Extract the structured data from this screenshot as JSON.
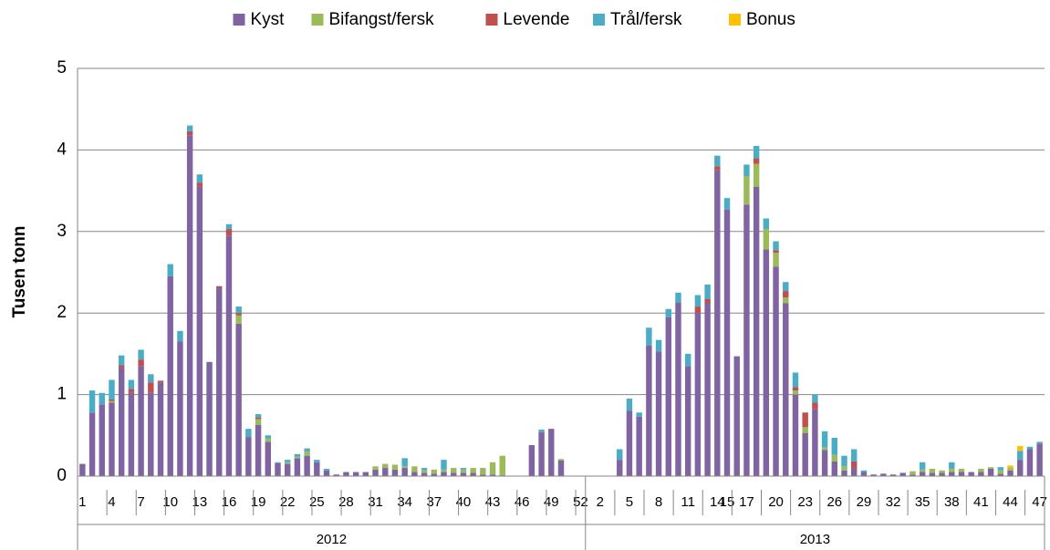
{
  "chart_data": {
    "type": "stacked_bar",
    "ylabel": "Tusen tonn",
    "ylim": [
      0,
      5
    ],
    "yticks": [
      0,
      1,
      2,
      3,
      4,
      5
    ],
    "grid": true,
    "legend": "top",
    "category_groups": [
      {
        "name": "2012",
        "categories": [
          "1",
          null,
          null,
          "4",
          null,
          null,
          "7",
          null,
          null,
          "10",
          null,
          null,
          "13",
          null,
          null,
          "16",
          null,
          null,
          "19",
          null,
          null,
          "22",
          null,
          null,
          "25",
          null,
          null,
          "28",
          null,
          null,
          "31",
          null,
          null,
          "34",
          null,
          null,
          "37",
          null,
          null,
          "40",
          null,
          null,
          "43",
          null,
          null,
          "46",
          null,
          null,
          "49",
          null,
          null,
          "52"
        ]
      },
      {
        "name": "2013",
        "categories": [
          null,
          "2",
          null,
          null,
          "5",
          null,
          null,
          "8",
          null,
          null,
          "11",
          null,
          null,
          "14",
          "15",
          null,
          "17",
          null,
          null,
          "20",
          null,
          null,
          "23",
          null,
          null,
          "26",
          null,
          null,
          "29",
          null,
          null,
          "32",
          null,
          null,
          "35",
          null,
          null,
          "38",
          null,
          null,
          "41",
          null,
          null,
          "44",
          null,
          null,
          "47"
        ]
      }
    ],
    "series": [
      {
        "name": "Kyst",
        "color": "#8064a2",
        "values": [
          0.15,
          0.78,
          0.88,
          0.9,
          1.33,
          1.02,
          1.35,
          1.02,
          1.15,
          2.45,
          1.65,
          4.18,
          3.55,
          1.4,
          2.31,
          2.95,
          1.87,
          0.48,
          0.63,
          0.42,
          0.16,
          0.15,
          0.22,
          0.25,
          0.17,
          0.07,
          0.02,
          0.05,
          0.05,
          0.05,
          0.08,
          0.1,
          0.08,
          0.1,
          0.05,
          0.04,
          0.03,
          0.05,
          0.04,
          0.04,
          0.04,
          0.02,
          0.02,
          0.01,
          0,
          0,
          0.38,
          0.54,
          0.58,
          0.19,
          0,
          0,
          0,
          0,
          0,
          0.2,
          0.8,
          0.73,
          1.6,
          1.53,
          1.95,
          2.13,
          1.35,
          2.0,
          2.12,
          3.75,
          3.27,
          1.47,
          3.33,
          3.55,
          2.78,
          2.57,
          2.12,
          1.0,
          0.53,
          0.82,
          0.32,
          0.18,
          0.07,
          0.1,
          0.05,
          0.02,
          0.03,
          0.02,
          0.04,
          0.02,
          0.05,
          0.04,
          0.04,
          0.05,
          0.05,
          0.05,
          0.05,
          0.09,
          0.03,
          0.07,
          0.2,
          0.33,
          0.4
        ]
      },
      {
        "name": "Bifangst/fersk",
        "color": "#9bbb59",
        "values": [
          0,
          0,
          0,
          0.02,
          0,
          0,
          0,
          0,
          0,
          0,
          0,
          0,
          0,
          0,
          0,
          0,
          0.1,
          0,
          0.07,
          0.04,
          0,
          0.02,
          0.02,
          0.05,
          0,
          0,
          0,
          0,
          0,
          0,
          0.04,
          0.05,
          0.06,
          0.02,
          0.07,
          0.03,
          0.05,
          0.03,
          0.06,
          0.04,
          0.06,
          0.08,
          0.15,
          0.24,
          0,
          0,
          0,
          0,
          0,
          0.02,
          0,
          0,
          0,
          0,
          0,
          0,
          0,
          0,
          0,
          0,
          0,
          0,
          0,
          0,
          0,
          0,
          0,
          0,
          0.35,
          0.28,
          0.25,
          0.17,
          0.07,
          0.05,
          0.07,
          0,
          0.03,
          0.08,
          0.05,
          0,
          0,
          0,
          0,
          0,
          0,
          0.04,
          0.03,
          0.05,
          0.03,
          0.04,
          0.04,
          0,
          0.04,
          0.02,
          0.04,
          0.03,
          0,
          0,
          0
        ]
      },
      {
        "name": "Levende",
        "color": "#c0504d",
        "values": [
          0,
          0,
          0,
          0.02,
          0.03,
          0.05,
          0.08,
          0.13,
          0.02,
          0,
          0,
          0.05,
          0.05,
          0,
          0.02,
          0.08,
          0.03,
          0,
          0.02,
          0,
          0,
          0,
          0,
          0,
          0,
          0,
          0,
          0,
          0,
          0,
          0,
          0,
          0,
          0,
          0,
          0,
          0,
          0,
          0,
          0,
          0,
          0,
          0,
          0,
          0,
          0,
          0,
          0,
          0,
          0,
          0,
          0,
          0,
          0,
          0,
          0,
          0,
          0,
          0,
          0,
          0,
          0,
          0,
          0.08,
          0.05,
          0.05,
          0,
          0,
          0,
          0.07,
          0,
          0.03,
          0.08,
          0.04,
          0.18,
          0.08,
          0,
          0,
          0,
          0.08,
          0,
          0,
          0,
          0,
          0,
          0,
          0,
          0,
          0,
          0,
          0,
          0,
          0,
          0,
          0,
          0,
          0,
          0,
          0
        ]
      },
      {
        "name": "Trål/fersk",
        "color": "#4bacc6",
        "values": [
          0,
          0.27,
          0.14,
          0.24,
          0.12,
          0.11,
          0.12,
          0.1,
          0,
          0.15,
          0.13,
          0.07,
          0.1,
          0,
          0,
          0.06,
          0.08,
          0.1,
          0.04,
          0.04,
          0.01,
          0.03,
          0.03,
          0.04,
          0.03,
          0.02,
          0,
          0,
          0,
          0,
          0,
          0,
          0,
          0.1,
          0,
          0.03,
          0,
          0.12,
          0,
          0.02,
          0,
          0,
          0,
          0,
          0,
          0,
          0,
          0.03,
          0,
          0,
          0,
          0,
          0,
          0,
          0,
          0.13,
          0.15,
          0.05,
          0.22,
          0.14,
          0.1,
          0.12,
          0.15,
          0.14,
          0.18,
          0.13,
          0.14,
          0,
          0.14,
          0.15,
          0.13,
          0.11,
          0.11,
          0.18,
          0,
          0.1,
          0.2,
          0.21,
          0.13,
          0.15,
          0.02,
          0,
          0,
          0,
          0,
          0,
          0.09,
          0,
          0,
          0.08,
          0,
          0,
          0,
          0,
          0.04,
          0,
          0.11,
          0.03,
          0.02
        ]
      },
      {
        "name": "Bonus",
        "color": "#ffc000",
        "values": [
          0,
          0,
          0,
          0,
          0,
          0,
          0,
          0,
          0,
          0,
          0,
          0,
          0,
          0,
          0,
          0,
          0,
          0,
          0,
          0,
          0,
          0,
          0,
          0,
          0,
          0,
          0,
          0,
          0,
          0,
          0,
          0,
          0,
          0,
          0,
          0,
          0,
          0,
          0,
          0,
          0,
          0,
          0,
          0,
          0,
          0,
          0,
          0,
          0,
          0,
          0,
          0,
          0,
          0,
          0,
          0,
          0,
          0,
          0,
          0,
          0,
          0,
          0,
          0,
          0,
          0,
          0,
          0,
          0,
          0,
          0,
          0,
          0,
          0,
          0,
          0,
          0,
          0,
          0,
          0,
          0,
          0,
          0,
          0,
          0,
          0,
          0,
          0,
          0,
          0,
          0,
          0,
          0,
          0,
          0,
          0.03,
          0.06,
          0,
          0,
          0,
          0
        ]
      }
    ]
  }
}
